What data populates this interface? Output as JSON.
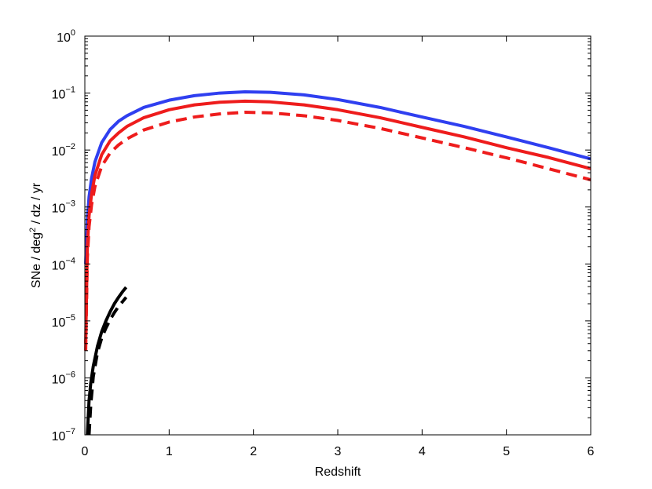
{
  "chart_data": {
    "type": "line",
    "title": "",
    "xlabel": "Redshift",
    "ylabel": "SNe / deg² / dz / yr",
    "ylabel_parts": {
      "pre": "SNe / deg",
      "sup": "2",
      "post": " / dz / yr"
    },
    "xlim": [
      0,
      6
    ],
    "ylim": [
      1e-07,
      1
    ],
    "yscale": "log",
    "grid": false,
    "legend": "none",
    "x_ticks": [
      0,
      1,
      2,
      3,
      4,
      5,
      6
    ],
    "y_tick_exponents": [
      -7,
      -6,
      -5,
      -4,
      -3,
      -2,
      -1,
      0
    ],
    "series": [
      {
        "color": "#2f3ff0",
        "dash": "solid",
        "x": [
          0.01,
          0.03,
          0.05,
          0.08,
          0.12,
          0.2,
          0.3,
          0.4,
          0.5,
          0.7,
          1.0,
          1.3,
          1.6,
          1.9,
          2.2,
          2.6,
          3.0,
          3.5,
          4.0,
          4.5,
          5.0,
          5.5,
          6.0
        ],
        "y": [
          0.0001,
          0.0006,
          0.0015,
          0.0032,
          0.0062,
          0.0135,
          0.023,
          0.032,
          0.04,
          0.056,
          0.075,
          0.09,
          0.1,
          0.105,
          0.103,
          0.093,
          0.077,
          0.056,
          0.038,
          0.026,
          0.017,
          0.011,
          0.007
        ]
      },
      {
        "color": "#ee1c1c",
        "dash": "solid",
        "x": [
          0.01,
          0.03,
          0.05,
          0.08,
          0.12,
          0.2,
          0.3,
          0.4,
          0.5,
          0.7,
          1.0,
          1.3,
          1.6,
          1.9,
          2.2,
          2.6,
          3.0,
          3.5,
          4.0,
          4.5,
          5.0,
          5.5,
          6.0
        ],
        "y": [
          4e-06,
          0.0002,
          0.0007,
          0.0017,
          0.0036,
          0.0083,
          0.0145,
          0.02,
          0.026,
          0.037,
          0.051,
          0.062,
          0.069,
          0.072,
          0.07,
          0.062,
          0.051,
          0.037,
          0.025,
          0.017,
          0.011,
          0.0074,
          0.0047
        ]
      },
      {
        "color": "#ee1c1c",
        "dash": "dashed",
        "x": [
          0.01,
          0.03,
          0.05,
          0.08,
          0.12,
          0.2,
          0.3,
          0.4,
          0.5,
          0.7,
          1.0,
          1.3,
          1.6,
          1.9,
          2.2,
          2.6,
          3.0,
          3.5,
          4.0,
          4.5,
          5.0,
          5.5,
          6.0
        ],
        "y": [
          3e-06,
          0.00013,
          0.00045,
          0.0011,
          0.0023,
          0.0052,
          0.0089,
          0.0123,
          0.0157,
          0.0225,
          0.031,
          0.038,
          0.043,
          0.046,
          0.045,
          0.04,
          0.033,
          0.024,
          0.0163,
          0.011,
          0.0073,
          0.0047,
          0.003
        ]
      },
      {
        "color": "#000000",
        "dash": "solid",
        "x": [
          0.03,
          0.05,
          0.07,
          0.1,
          0.15,
          0.2,
          0.25,
          0.3,
          0.35,
          0.4,
          0.45,
          0.49
        ],
        "y": [
          1e-07,
          4e-07,
          8e-07,
          1.6e-06,
          3.6e-06,
          6.5e-06,
          1e-05,
          1.45e-05,
          2e-05,
          2.6e-05,
          3.3e-05,
          3.9e-05
        ]
      },
      {
        "color": "#000000",
        "dash": "dashed",
        "x": [
          0.05,
          0.07,
          0.1,
          0.15,
          0.2,
          0.25,
          0.3,
          0.35,
          0.4,
          0.45,
          0.49
        ],
        "y": [
          1e-07,
          3.3e-07,
          1.05e-06,
          2.8e-06,
          5e-06,
          7.5e-06,
          1.05e-05,
          1.4e-05,
          1.8e-05,
          2.2e-05,
          2.6e-05
        ]
      }
    ]
  }
}
